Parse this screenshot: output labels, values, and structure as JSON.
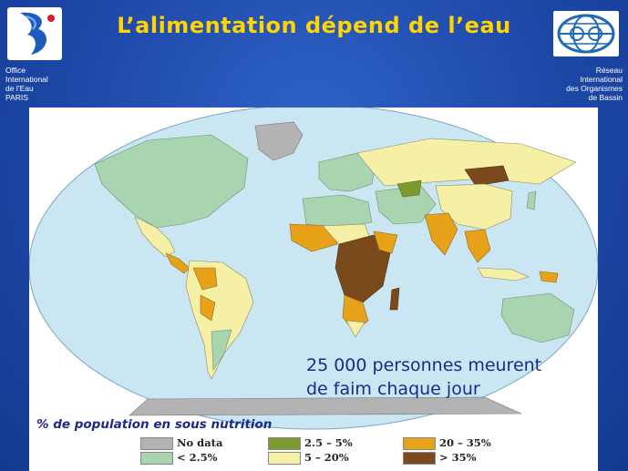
{
  "title": "L’alimentation dépend de l’eau",
  "org_left": {
    "lines": [
      "Office",
      "International",
      "de l’Eau",
      "PARIS"
    ]
  },
  "org_right": {
    "lines": [
      "Réseau",
      "International",
      "des Organismes",
      "de Bassin"
    ]
  },
  "caption": {
    "line1": "25 000 personnes meurent",
    "line2": "de faim chaque jour"
  },
  "legend": {
    "title": "% de population en sous nutrition",
    "items": [
      {
        "label": "No data",
        "color": "#b3b3b3"
      },
      {
        "label": "< 2.5%",
        "color": "#a8d4b0"
      },
      {
        "label": "2.5 – 5%",
        "color": "#7d9a2e"
      },
      {
        "label": "5 – 20%",
        "color": "#f6f0a6"
      },
      {
        "label": "20 – 35%",
        "color": "#e8a21a"
      },
      {
        "label": "> 35%",
        "color": "#7a4a1c"
      }
    ]
  },
  "colors": {
    "ocean": "#c9e6f2",
    "title": "#ffd400",
    "background": "#1d48a8"
  }
}
